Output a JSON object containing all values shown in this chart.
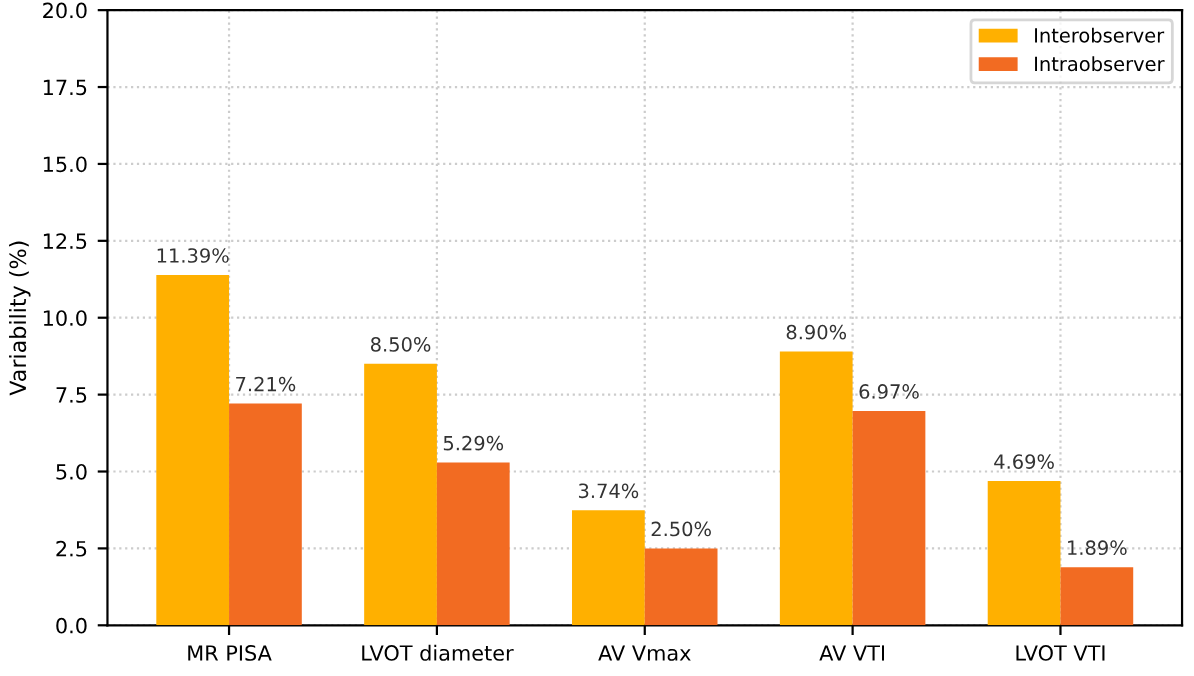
{
  "chart_data": {
    "type": "bar",
    "ylabel": "Variability (%)",
    "categories": [
      "MR PISA",
      "LVOT diameter",
      "AV Vmax",
      "AV VTI",
      "LVOT VTI"
    ],
    "series": [
      {
        "name": "Interobserver",
        "color": "#ffb000",
        "values": [
          11.39,
          8.5,
          3.74,
          8.9,
          4.69
        ],
        "value_labels": [
          "11.39%",
          "8.50%",
          "3.74%",
          "8.90%",
          "4.69%"
        ]
      },
      {
        "name": "Intraobserver",
        "color": "#f26b22",
        "values": [
          7.21,
          5.29,
          2.5,
          6.97,
          1.89
        ],
        "value_labels": [
          "7.21%",
          "5.29%",
          "2.50%",
          "6.97%",
          "1.89%"
        ]
      }
    ],
    "ylim": [
      0,
      20
    ],
    "yticks": [
      {
        "value": 0,
        "label": "0.0"
      },
      {
        "value": 2.5,
        "label": "2.5"
      },
      {
        "value": 5,
        "label": "5.0"
      },
      {
        "value": 7.5,
        "label": "7.5"
      },
      {
        "value": 10,
        "label": "10.0"
      },
      {
        "value": 12.5,
        "label": "12.5"
      },
      {
        "value": 15,
        "label": "15.0"
      },
      {
        "value": 17.5,
        "label": "17.5"
      },
      {
        "value": 20,
        "label": "20.0"
      }
    ],
    "grid": true,
    "legend": "top right"
  }
}
